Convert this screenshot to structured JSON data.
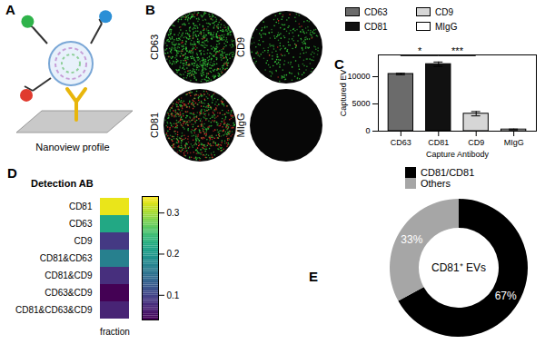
{
  "figure": {
    "panels": [
      {
        "label": "A",
        "text": "Nanoview profile"
      },
      {
        "label": "B",
        "images": [
          "CD63",
          "CD9",
          "CD81",
          "MIgG"
        ]
      }
    ]
  },
  "chart_data": [
    {
      "panel_label": "C",
      "type": "bar",
      "categories": [
        "CD63",
        "CD81",
        "CD9",
        "MIgG"
      ],
      "values": [
        10500,
        12300,
        3200,
        300
      ],
      "errors": [
        150,
        400,
        400,
        80
      ],
      "colors": [
        "#6b6b6b",
        "#111111",
        "#d6d6d6",
        "#ffffff"
      ],
      "xlabel": "Capture Antibody",
      "ylabel": "Captured EV",
      "ylim": [
        0,
        14000
      ],
      "yticks": [
        0,
        5000,
        10000
      ],
      "legend": "top",
      "annotations": [
        {
          "text": "*",
          "from": "CD63",
          "to": "CD81"
        },
        {
          "text": "***",
          "from": "CD81",
          "to": "CD9"
        }
      ]
    },
    {
      "panel_label": "D",
      "type": "heatmap",
      "title": "Detection AB",
      "rows": [
        "CD81",
        "CD63",
        "CD9",
        "CD81&CD63",
        "CD81&CD9",
        "CD63&CD9",
        "CD81&CD63&CD9"
      ],
      "columns": [
        "fraction"
      ],
      "values": [
        [
          0.33
        ],
        [
          0.22
        ],
        [
          0.09
        ],
        [
          0.17
        ],
        [
          0.08
        ],
        [
          0.04
        ],
        [
          0.07
        ]
      ],
      "colorbar": {
        "range": [
          0.04,
          0.34
        ],
        "ticks": [
          0.1,
          0.2,
          0.3
        ]
      }
    },
    {
      "panel_label": "E",
      "type": "pie",
      "categories": [
        "CD81/CD81",
        "Others"
      ],
      "values": [
        67,
        33
      ],
      "value_labels": [
        "67%",
        "33%"
      ],
      "data_labels": true,
      "colors": [
        "#000000",
        "#a6a6a6"
      ],
      "center_text": "CD81⁺ EVs",
      "legend": "top"
    }
  ]
}
